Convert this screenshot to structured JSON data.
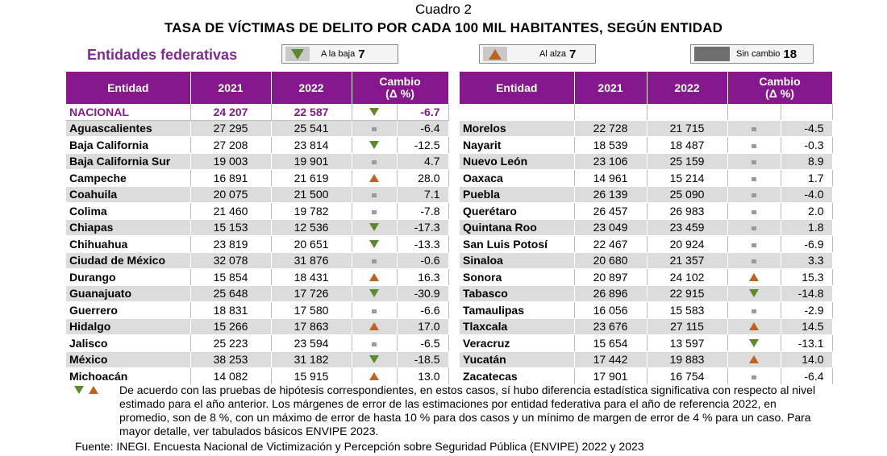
{
  "cuadro": "Cuadro 2",
  "title": "TASA DE VÍCTIMAS DE DELITO POR CADA 100 MIL HABITANTES, SEGÚN ENTIDAD",
  "subtitle": "Entidades federativas",
  "legend": {
    "down": {
      "label": "A la baja",
      "count": "7",
      "icon": "triangle-down-icon"
    },
    "up": {
      "label": "Al alza",
      "count": "7",
      "icon": "triangle-up-icon"
    },
    "same": {
      "label": "Sin cambio",
      "count": "18",
      "icon": "dash-icon"
    }
  },
  "colors": {
    "header": "#87178D",
    "down": "#5B8A2E",
    "up": "#C0621F",
    "stripe": "#DCDCDC"
  },
  "headers": {
    "entidad": "Entidad",
    "y2021": "2021",
    "y2022": "2022",
    "cambio": "Cambio",
    "cambio_unit": "(Δ %)"
  },
  "nacional": {
    "name": "NACIONAL",
    "v2021": "24 207",
    "v2022": "22 587",
    "ind": "down",
    "chg": "-6.7"
  },
  "left_rows": [
    {
      "name": "Aguascalientes",
      "v2021": "27 295",
      "v2022": "25 541",
      "ind": "same",
      "chg": "-6.4"
    },
    {
      "name": "Baja California",
      "v2021": "27 208",
      "v2022": "23 814",
      "ind": "down",
      "chg": "-12.5"
    },
    {
      "name": "Baja California Sur",
      "v2021": "19 003",
      "v2022": "19 901",
      "ind": "same",
      "chg": "4.7"
    },
    {
      "name": "Campeche",
      "v2021": "16 891",
      "v2022": "21 619",
      "ind": "up",
      "chg": "28.0"
    },
    {
      "name": "Coahuila",
      "v2021": "20 075",
      "v2022": "21 500",
      "ind": "same",
      "chg": "7.1"
    },
    {
      "name": "Colima",
      "v2021": "21 460",
      "v2022": "19 782",
      "ind": "same",
      "chg": "-7.8"
    },
    {
      "name": "Chiapas",
      "v2021": "15 153",
      "v2022": "12 536",
      "ind": "down",
      "chg": "-17.3"
    },
    {
      "name": "Chihuahua",
      "v2021": "23 819",
      "v2022": "20 651",
      "ind": "down",
      "chg": "-13.3"
    },
    {
      "name": "Ciudad de México",
      "v2021": "32 078",
      "v2022": "31 876",
      "ind": "same",
      "chg": "-0.6"
    },
    {
      "name": "Durango",
      "v2021": "15 854",
      "v2022": "18 431",
      "ind": "up",
      "chg": "16.3"
    },
    {
      "name": "Guanajuato",
      "v2021": "25 648",
      "v2022": "17 726",
      "ind": "down",
      "chg": "-30.9"
    },
    {
      "name": "Guerrero",
      "v2021": "18 831",
      "v2022": "17 580",
      "ind": "same",
      "chg": "-6.6"
    },
    {
      "name": "Hidalgo",
      "v2021": "15 266",
      "v2022": "17 863",
      "ind": "up",
      "chg": "17.0"
    },
    {
      "name": "Jalisco",
      "v2021": "25 223",
      "v2022": "23 594",
      "ind": "same",
      "chg": "-6.5"
    },
    {
      "name": "México",
      "v2021": "38 253",
      "v2022": "31 182",
      "ind": "down",
      "chg": "-18.5"
    },
    {
      "name": "Michoacán",
      "v2021": "14 082",
      "v2022": "15 915",
      "ind": "up",
      "chg": "13.0"
    }
  ],
  "right_rows": [
    {
      "name": "Morelos",
      "v2021": "22 728",
      "v2022": "21 715",
      "ind": "same",
      "chg": "-4.5"
    },
    {
      "name": "Nayarit",
      "v2021": "18 539",
      "v2022": "18 487",
      "ind": "same",
      "chg": "-0.3"
    },
    {
      "name": "Nuevo León",
      "v2021": "23 106",
      "v2022": "25 159",
      "ind": "same",
      "chg": "8.9"
    },
    {
      "name": "Oaxaca",
      "v2021": "14 961",
      "v2022": "15 214",
      "ind": "same",
      "chg": "1.7"
    },
    {
      "name": "Puebla",
      "v2021": "26 139",
      "v2022": "25 090",
      "ind": "same",
      "chg": "-4.0"
    },
    {
      "name": "Querétaro",
      "v2021": "26 457",
      "v2022": "26 983",
      "ind": "same",
      "chg": "2.0"
    },
    {
      "name": "Quintana Roo",
      "v2021": "23 049",
      "v2022": "23 459",
      "ind": "same",
      "chg": "1.8"
    },
    {
      "name": "San Luis Potosí",
      "v2021": "22 467",
      "v2022": "20 924",
      "ind": "same",
      "chg": "-6.9"
    },
    {
      "name": "Sinaloa",
      "v2021": "20 680",
      "v2022": "21 357",
      "ind": "same",
      "chg": "3.3"
    },
    {
      "name": "Sonora",
      "v2021": "20 897",
      "v2022": "24 102",
      "ind": "up",
      "chg": "15.3"
    },
    {
      "name": "Tabasco",
      "v2021": "26 896",
      "v2022": "22 915",
      "ind": "down",
      "chg": "-14.8"
    },
    {
      "name": "Tamaulipas",
      "v2021": "16 056",
      "v2022": "15 583",
      "ind": "same",
      "chg": "-2.9"
    },
    {
      "name": "Tlaxcala",
      "v2021": "23 676",
      "v2022": "27 115",
      "ind": "up",
      "chg": "14.5"
    },
    {
      "name": "Veracruz",
      "v2021": "15 654",
      "v2022": "13 597",
      "ind": "down",
      "chg": "-13.1"
    },
    {
      "name": "Yucatán",
      "v2021": "17 442",
      "v2022": "19 883",
      "ind": "up",
      "chg": "14.0"
    },
    {
      "name": "Zacatecas",
      "v2021": "17 901",
      "v2022": "16 754",
      "ind": "same",
      "chg": "-6.4"
    }
  ],
  "note": "De acuerdo con las pruebas de hipótesis correspondientes, en estos casos, sí hubo diferencia estadística significativa con respecto al nivel estimado para el año anterior. Los márgenes de error de las estimaciones por entidad federativa para el año de referencia 2022, en promedio, son de 8 %, con un máximo de error de hasta 10 % para dos casos y un mínimo de margen de error de 4 % para un caso. Para mayor detalle, ver tabulados básicos ENVIPE 2023.",
  "source": "Fuente: INEGI. Encuesta Nacional de Victimización y Percepción sobre Seguridad Pública (ENVIPE) 2022 y 2023"
}
